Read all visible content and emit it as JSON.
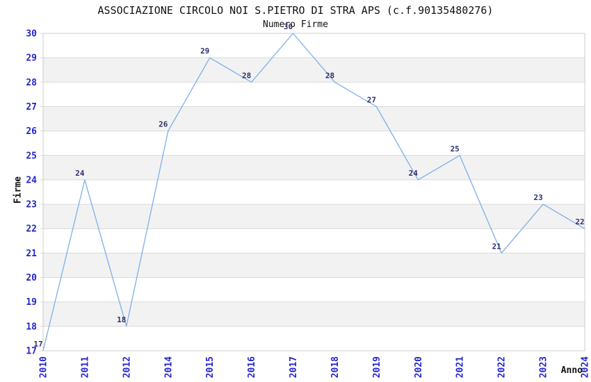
{
  "chart_data": {
    "type": "line",
    "title": "ASSOCIAZIONE CIRCOLO NOI S.PIETRO DI STRA APS (c.f.90135480276)",
    "subtitle": "Numero Firme",
    "xlabel": "Anno",
    "ylabel": "Firme",
    "categories": [
      "2010",
      "2011",
      "2012",
      "2014",
      "2015",
      "2016",
      "2017",
      "2018",
      "2019",
      "2020",
      "2021",
      "2022",
      "2023",
      "2024"
    ],
    "values": [
      17,
      24,
      18,
      26,
      29,
      28,
      30,
      28,
      27,
      24,
      25,
      21,
      23,
      22
    ],
    "ylim": [
      17,
      30
    ],
    "ytick_step": 1,
    "grid": "horizontal-only",
    "background_bands": "alternating",
    "legend_position": "none",
    "data_labels_shown": true,
    "x_tick_rotation_deg": -90,
    "colors": {
      "line": "#7dafe8",
      "band_fill": "#f2f2f2",
      "band_fill_alt": "#ffffff",
      "grid_line": "#d8d8d8",
      "plot_border": "#cccccc",
      "axis_tick_label": "#2424cc",
      "data_label": "#2e2e6e",
      "title_text": "#111111"
    }
  }
}
